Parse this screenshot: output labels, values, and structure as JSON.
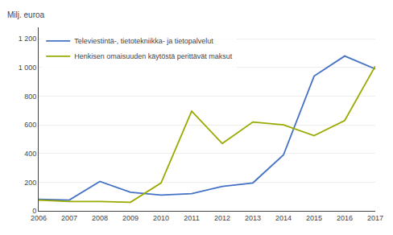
{
  "chart_data": {
    "type": "line",
    "x": [
      2006,
      2007,
      2008,
      2009,
      2010,
      2011,
      2012,
      2013,
      2014,
      2015,
      2016,
      2017
    ],
    "series": [
      {
        "name": "Televiestintä-, tietotekniikka- ja tietopalvelut",
        "color": "#4472c4",
        "values": [
          80,
          75,
          205,
          130,
          110,
          120,
          170,
          195,
          390,
          940,
          1080,
          990
        ]
      },
      {
        "name": "Henkisen omaisuuden käytöstä perittävät maksut",
        "color": "#9aaa00",
        "values": [
          75,
          65,
          65,
          60,
          195,
          695,
          470,
          620,
          600,
          525,
          630,
          1010
        ]
      }
    ],
    "ylabel": "Milj. euroa",
    "xlim": [
      2006,
      2017
    ],
    "xticks": [
      2006,
      2007,
      2008,
      2009,
      2010,
      2011,
      2012,
      2013,
      2014,
      2015,
      2016,
      2017
    ],
    "ylim": [
      0,
      1280
    ],
    "yticks": [
      0,
      200,
      400,
      600,
      800,
      {
        "value": 1000,
        "label": "1 000"
      },
      {
        "value": 1200,
        "label": "1 200"
      }
    ],
    "grid": true,
    "legend": "upper left"
  }
}
